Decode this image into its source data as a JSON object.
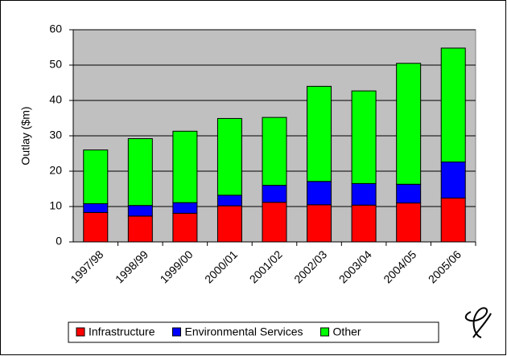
{
  "chart_data": {
    "type": "stacked_bar",
    "y_label": "Outlay ($m)",
    "categories": [
      "1997/98",
      "1998/99",
      "1999/00",
      "2000/01",
      "2001/02",
      "2002/03",
      "2003/04",
      "2004/05",
      "2005/06"
    ],
    "series": [
      {
        "name": "Infrastructure",
        "color": "#ff0000",
        "values": [
          8.3,
          7.3,
          8.1,
          10.2,
          11.2,
          10.5,
          10.4,
          11.0,
          12.4
        ]
      },
      {
        "name": "Environmental Services",
        "color": "#0000ff",
        "values": [
          2.5,
          3.0,
          3.0,
          3.0,
          4.8,
          6.6,
          6.1,
          5.3,
          10.2
        ]
      },
      {
        "name": "Other",
        "color": "#00ff00",
        "values": [
          15.2,
          18.9,
          20.2,
          21.7,
          19.2,
          26.9,
          26.2,
          34.2,
          32.2
        ]
      }
    ],
    "ylim": [
      0,
      60
    ],
    "yticks": [
      0,
      10,
      20,
      30,
      40,
      50,
      60
    ],
    "grid": true,
    "legend": "bottom"
  }
}
